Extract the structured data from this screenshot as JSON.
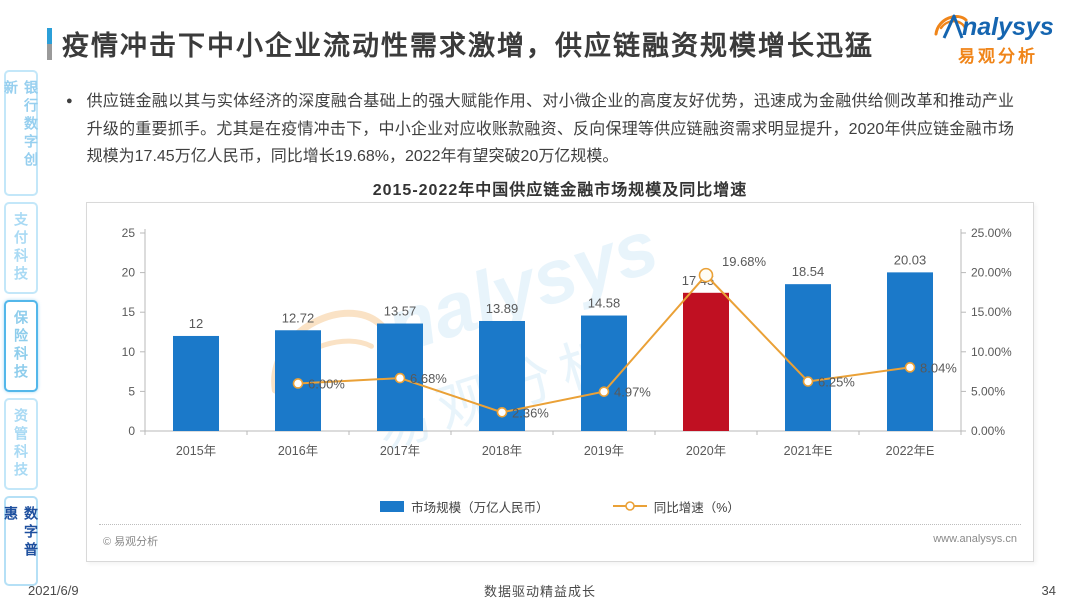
{
  "header": {
    "title": "疫情冲击下中小企业流动性需求激增，供应链融资规模增长迅猛",
    "logo": {
      "brand": "nalysys",
      "brand_cn": "易观分析"
    }
  },
  "sidebar": {
    "items": [
      {
        "label": "银行数字创新",
        "state": "normal"
      },
      {
        "label": "支付科技",
        "state": "muted"
      },
      {
        "label": "保险科技",
        "state": "outlined"
      },
      {
        "label": "资管科技",
        "state": "muted"
      },
      {
        "label": "数字普惠",
        "state": "active"
      }
    ]
  },
  "bullet": {
    "text": "供应链金融以其与实体经济的深度融合基础上的强大赋能作用、对小微企业的高度友好优势，迅速成为金融供给侧改革和推动产业升级的重要抓手。尤其是在疫情冲击下，中小企业对应收账款融资、反向保理等供应链融资需求明显提升，2020年供应链金融市场规模为17.45万亿人民币，同比增长19.68%，2022年有望突破20万亿规模。"
  },
  "chart_data": {
    "type": "bar",
    "title": "2015-2022年中国供应链金融市场规模及同比增速",
    "categories": [
      "2015年",
      "2016年",
      "2017年",
      "2018年",
      "2019年",
      "2020年",
      "2021年E",
      "2022年E"
    ],
    "series": [
      {
        "name": "市场规模（万亿人民币）",
        "type": "bar",
        "values": [
          12,
          12.72,
          13.57,
          13.89,
          14.58,
          17.45,
          18.54,
          20.03
        ],
        "labels": [
          "12",
          "12.72",
          "13.57",
          "13.89",
          "14.58",
          "17.45",
          "18.54",
          "20.03"
        ],
        "color_default": "#1B79C9",
        "highlight_index": 5,
        "highlight_color": "#C01022"
      },
      {
        "name": "同比增速（%）",
        "type": "line",
        "values": [
          null,
          6.0,
          6.68,
          2.36,
          4.97,
          19.68,
          6.25,
          8.04
        ],
        "labels": [
          null,
          "6.00%",
          "6.68%",
          "2.36%",
          "4.97%",
          "19.68%",
          "6.25%",
          "8.04%"
        ],
        "color": "#EAA137"
      }
    ],
    "left_axis": {
      "min": 0,
      "max": 25,
      "ticks": [
        "0",
        "5",
        "10",
        "15",
        "20",
        "25"
      ]
    },
    "right_axis": {
      "min": 0,
      "max": 25,
      "ticks": [
        "0.00%",
        "5.00%",
        "10.00%",
        "15.00%",
        "20.00%",
        "25.00%"
      ]
    },
    "legend": [
      "市场规模（万亿人民币）",
      "同比增速（%）"
    ],
    "legend_position": "bottom",
    "grid": false,
    "watermark": {
      "brand": "nalysys",
      "brand_cn": "易观分析"
    }
  },
  "chart_footer": {
    "source": "© 易观分析",
    "site": "www.analysys.cn"
  },
  "footer": {
    "date": "2021/6/9",
    "slogan": "数据驱动精益成长",
    "page": "34"
  },
  "colors": {
    "bar_blue": "#1B79C9",
    "bar_red": "#C01022",
    "line_orange": "#EAA137",
    "axis_text": "#595959",
    "axis_line": "#b9b9b9",
    "sidebar_blue": "#96cfef",
    "sidebar_active": "#1d4f9e",
    "logo_blue": "#1565b0",
    "logo_orange": "#f08519"
  }
}
